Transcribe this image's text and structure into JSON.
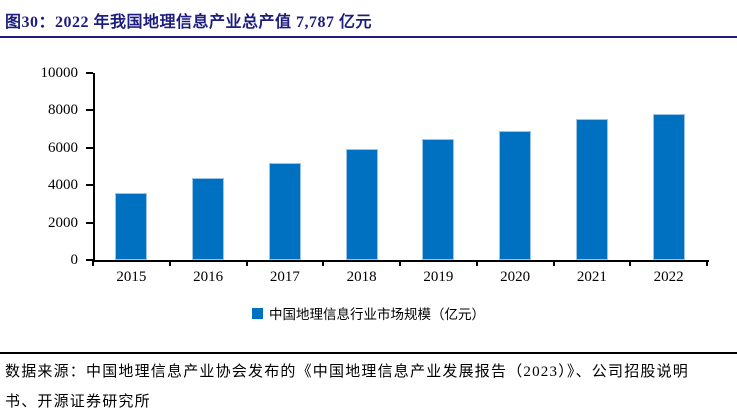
{
  "header": {
    "title": "图30：2022 年我国地理信息产业总产值 7,787 亿元"
  },
  "chart_data": {
    "type": "bar",
    "title": "图30：2022 年我国地理信息产业总产值 7,787 亿元",
    "categories": [
      "2015",
      "2016",
      "2017",
      "2018",
      "2019",
      "2020",
      "2021",
      "2022"
    ],
    "series": [
      {
        "name": "中国地理信息行业市场规模（亿元）",
        "color": "#0070c0",
        "values": [
          3600,
          4360,
          5180,
          5957,
          6476,
          6890,
          7524,
          7787
        ]
      }
    ],
    "xlabel": "",
    "ylabel": "",
    "ylim": [
      0,
      10000
    ],
    "yticks": [
      0,
      2000,
      4000,
      6000,
      8000,
      10000
    ],
    "grid": false,
    "legend_position": "bottom"
  },
  "legend": {
    "marker_color": "#0070c0",
    "label": "中国地理信息行业市场规模（亿元）"
  },
  "footer": {
    "lines": [
      "数据来源：中国地理信息产业协会发布的《中国地理信息产业发展报告（2023）》、公司招股说明",
      "书、开源证券研究所"
    ]
  },
  "colors": {
    "accent_navy": "#1d1d7e",
    "bar_blue": "#0070c0",
    "axis_black": "#000000"
  }
}
